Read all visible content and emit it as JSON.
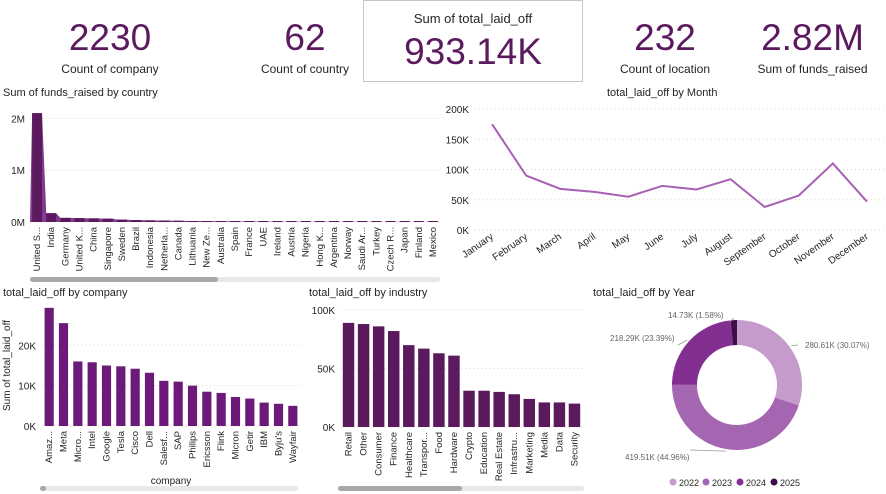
{
  "cards": {
    "company": {
      "value": "2230",
      "label": "Count of company"
    },
    "country": {
      "value": "62",
      "label": "Count of country"
    },
    "laid_off": {
      "value": "933.14K",
      "label": "Sum of total_laid_off"
    },
    "location": {
      "value": "232",
      "label": "Count of location"
    },
    "funds": {
      "value": "2.82M",
      "label": "Sum of funds_raised"
    }
  },
  "titles": {
    "funds_by_country": "Sum of funds_raised by country",
    "by_month": "total_laid_off by Month",
    "by_company": "total_laid_off by company",
    "by_industry": "total_laid_off by industry",
    "by_year": "total_laid_off by Year"
  },
  "colors": {
    "primary": "#5b1a5e",
    "bar": "#6b1a7a",
    "line": "#a860b4",
    "accent_dark": "#3d0f4a"
  },
  "chart_data": [
    {
      "type": "area",
      "title": "Sum of funds_raised by country",
      "y_ticks": [
        "0M",
        "1M",
        "2M"
      ],
      "ylim": [
        0,
        2200000
      ],
      "categories": [
        "United S...",
        "India",
        "Germany",
        "United K...",
        "China",
        "Singapore",
        "Sweden",
        "Brazil",
        "Indonesia",
        "Netherla...",
        "Canada",
        "Lithuania",
        "New Ze...",
        "Australia",
        "Spain",
        "France",
        "UAE",
        "Ireland",
        "Austria",
        "Nigeria",
        "Hong K...",
        "Argentina",
        "Norway",
        "Saudi Ar...",
        "Turkey",
        "Czech R...",
        "Japan",
        "Finland",
        "Mexico"
      ],
      "values": [
        2100000,
        170000,
        80000,
        75000,
        70000,
        65000,
        45000,
        38000,
        32000,
        28000,
        25000,
        20000,
        18000,
        15000,
        12000,
        10000,
        9000,
        8000,
        7000,
        6000,
        5000,
        5000,
        4000,
        4000,
        3000,
        3000,
        2500,
        2000,
        1500
      ]
    },
    {
      "type": "line",
      "title": "total_laid_off by Month",
      "y_ticks": [
        "0K",
        "50K",
        "100K",
        "150K",
        "200K"
      ],
      "ylim": [
        0,
        200000
      ],
      "categories": [
        "January",
        "February",
        "March",
        "April",
        "May",
        "June",
        "July",
        "August",
        "September",
        "October",
        "November",
        "December"
      ],
      "values": [
        175000,
        90000,
        68000,
        63000,
        55000,
        73000,
        67000,
        84000,
        38000,
        57000,
        110000,
        47000
      ]
    },
    {
      "type": "bar",
      "title": "total_laid_off by company",
      "xlabel": "company",
      "ylabel": "Sum of total_laid_off",
      "y_ticks": [
        "0K",
        "10K",
        "20K"
      ],
      "ylim": [
        0,
        30000
      ],
      "categories": [
        "Amaz...",
        "Meta",
        "Micro...",
        "Intel",
        "Google",
        "Tesla",
        "Cisco",
        "Dell",
        "Salesf...",
        "SAP",
        "Philips",
        "Ericsson",
        "Flink",
        "Micron",
        "Getir",
        "IBM",
        "Byju's",
        "Wayfair"
      ],
      "values": [
        29300,
        25500,
        16000,
        15800,
        15000,
        14800,
        14200,
        13200,
        11200,
        11000,
        10000,
        8500,
        8200,
        7200,
        6800,
        5800,
        5500,
        5000
      ]
    },
    {
      "type": "bar",
      "title": "total_laid_off by industry",
      "y_ticks": [
        "0K",
        "50K",
        "100K"
      ],
      "ylim": [
        0,
        100000
      ],
      "categories": [
        "Retail",
        "Other",
        "Consumer",
        "Finance",
        "Healthcare",
        "Transpor...",
        "Food",
        "Hardware",
        "Crypto",
        "Education",
        "Real Estate",
        "Infrastru...",
        "Marketing",
        "Media",
        "Data",
        "Security"
      ],
      "values": [
        89000,
        88000,
        86000,
        82000,
        70000,
        67000,
        63000,
        61000,
        31000,
        31000,
        30000,
        28000,
        24000,
        21000,
        21000,
        20000
      ]
    },
    {
      "type": "pie",
      "title": "total_laid_off by Year",
      "categories": [
        "2022",
        "2023",
        "2024",
        "2025"
      ],
      "values": [
        280610,
        419510,
        218290,
        14730
      ],
      "labels": [
        "280.61K (30.07%)",
        "419.51K (44.96%)",
        "218.29K (23.39%)",
        "14.73K (1.58%)"
      ],
      "colors": [
        "#c59bcc",
        "#a566b1",
        "#832f91",
        "#3d0f4a"
      ]
    }
  ]
}
